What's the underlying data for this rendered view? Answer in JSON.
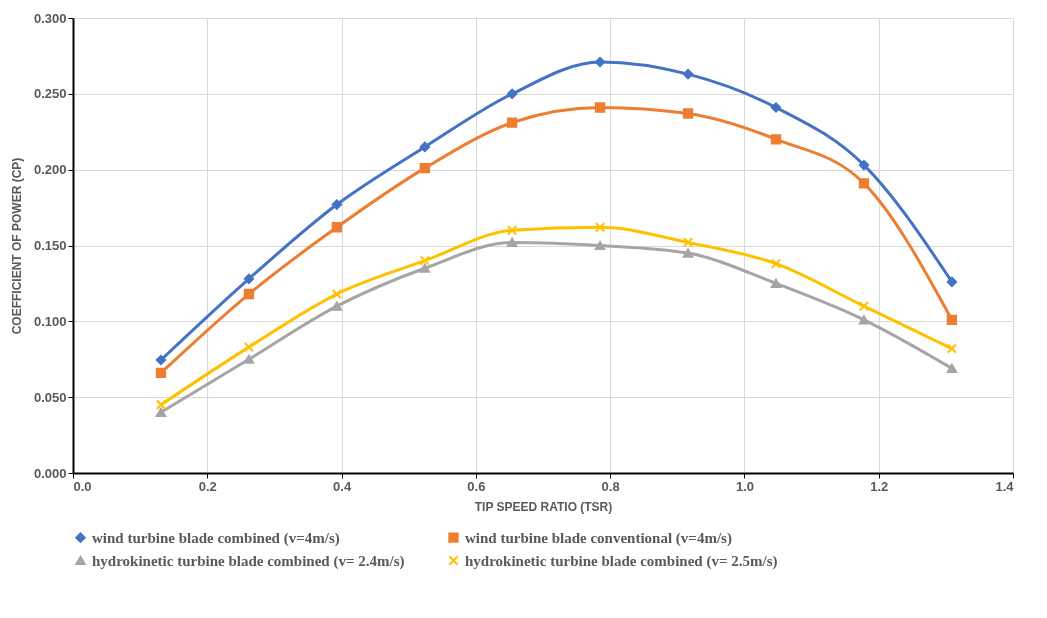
{
  "chart_data": {
    "type": "line",
    "xlabel": "TIP SPEED RATIO (TSR)",
    "ylabel": "COEFFICIENT OF POWER (CP)",
    "x": [
      0.131,
      0.262,
      0.393,
      0.524,
      0.654,
      0.785,
      0.916,
      1.047,
      1.178,
      1.309
    ],
    "series": [
      {
        "name": "wind turbine blade combined (v=4m/s)",
        "color": "#4472c4",
        "marker": "diamond",
        "values": [
          0.0745,
          0.128,
          0.177,
          0.215,
          0.25,
          0.271,
          0.263,
          0.241,
          0.203,
          0.126
        ]
      },
      {
        "name": "wind turbine blade conventional (v=4m/s)",
        "color": "#ed7d31",
        "marker": "square",
        "values": [
          0.066,
          0.118,
          0.162,
          0.201,
          0.231,
          0.241,
          0.237,
          0.22,
          0.191,
          0.101
        ]
      },
      {
        "name": "hydrokinetic turbine blade combined (v= 2.4m/s)",
        "color": "#a5a5a5",
        "marker": "triangle",
        "values": [
          0.04,
          0.075,
          0.11,
          0.135,
          0.152,
          0.15,
          0.145,
          0.125,
          0.101,
          0.069
        ]
      },
      {
        "name": "hydrokinetic turbine blade combined (v= 2.5m/s)",
        "color": "#ffc000",
        "marker": "cross",
        "values": [
          0.045,
          0.083,
          0.118,
          0.14,
          0.16,
          0.162,
          0.152,
          0.138,
          0.11,
          0.082
        ]
      }
    ],
    "xlim": [
      0.0,
      1.4
    ],
    "xticks": [
      {
        "value": 0.0,
        "label": "0.0"
      },
      0.2,
      0.4,
      0.6,
      0.8,
      {
        "value": 1.0,
        "label": "1.0"
      },
      1.2,
      1.4
    ],
    "ylim": [
      0.0,
      0.3
    ],
    "yticks": [
      {
        "value": 0.0,
        "label": "0.000"
      },
      {
        "value": 0.05,
        "label": "0.050"
      },
      {
        "value": 0.1,
        "label": "0.100"
      },
      {
        "value": 0.15,
        "label": "0.150"
      },
      {
        "value": 0.2,
        "label": "0.200"
      },
      {
        "value": 0.25,
        "label": "0.250"
      },
      {
        "value": 0.3,
        "label": "0.300"
      }
    ],
    "grid": true,
    "legend": "bottom",
    "line_style": "solid"
  }
}
